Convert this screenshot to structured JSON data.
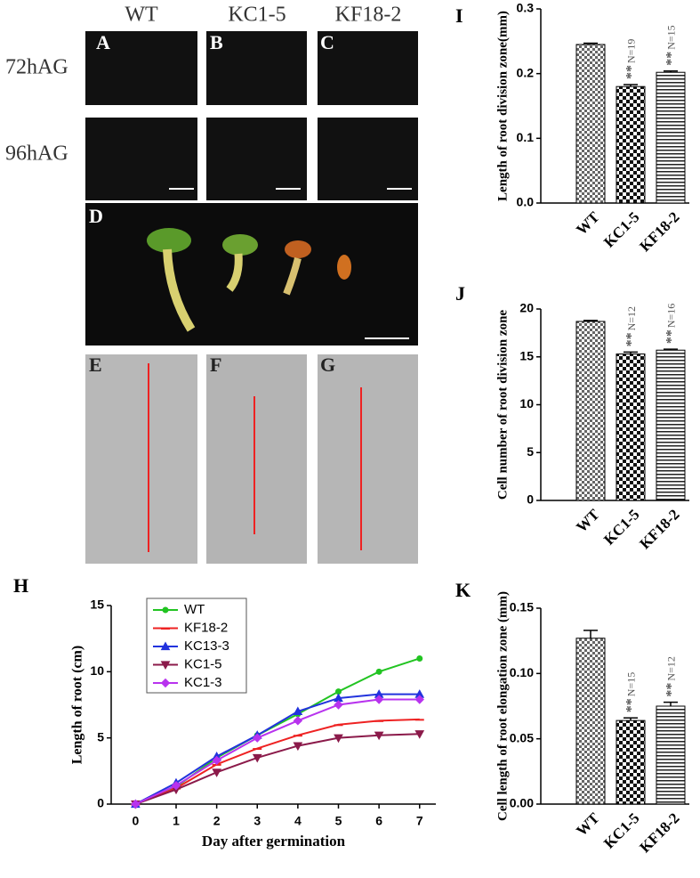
{
  "figure": {
    "columns": [
      "WT",
      "KC1-5",
      "KF18-2"
    ],
    "rows": [
      "72hAG",
      "96hAG"
    ],
    "panels": [
      "A",
      "B",
      "C",
      "D",
      "E",
      "F",
      "G"
    ]
  },
  "chart_data": [
    {
      "type": "line",
      "panel": "H",
      "xlabel": "Day after germination",
      "ylabel": "Length of root (cm)",
      "x": [
        0,
        1,
        2,
        3,
        4,
        5,
        6,
        7
      ],
      "xlim": [
        -0.6,
        7.4
      ],
      "xticks": [
        0,
        1,
        2,
        3,
        4,
        5,
        6,
        7
      ],
      "ylim": [
        0,
        15
      ],
      "yticks": [
        0,
        5,
        10,
        15
      ],
      "legend": "upper-left",
      "series": [
        {
          "name": "WT",
          "color": "#22c422",
          "marker": "circle",
          "values": [
            0,
            1.3,
            3.5,
            5.2,
            6.8,
            8.5,
            10.0,
            11.0
          ]
        },
        {
          "name": "KF18-2",
          "color": "#ee2222",
          "marker": "line",
          "values": [
            0,
            1.2,
            3.0,
            4.2,
            5.2,
            6.0,
            6.3,
            6.4
          ]
        },
        {
          "name": "KC13-3",
          "color": "#2233dd",
          "marker": "triangle-up",
          "values": [
            0,
            1.6,
            3.6,
            5.2,
            7.0,
            8.0,
            8.3,
            8.3
          ]
        },
        {
          "name": "KC1-5",
          "color": "#8b1a4a",
          "marker": "triangle-down",
          "values": [
            0,
            1.1,
            2.4,
            3.5,
            4.4,
            5.0,
            5.2,
            5.3
          ]
        },
        {
          "name": "KC1-3",
          "color": "#b833ee",
          "marker": "diamond",
          "values": [
            0,
            1.4,
            3.3,
            5.0,
            6.3,
            7.5,
            7.9,
            7.9
          ]
        }
      ]
    },
    {
      "type": "bar",
      "panel": "I",
      "ylabel": "Length of root division zone(mm)",
      "categories": [
        "WT",
        "KC1-5",
        "KF18-2"
      ],
      "values": [
        0.245,
        0.18,
        0.202
      ],
      "errors": [
        0.002,
        0.003,
        0.002
      ],
      "ylim": [
        0,
        0.3
      ],
      "yticks": [
        {
          "value": 0,
          "label": "0.0"
        },
        0.1,
        0.2,
        0.3
      ],
      "annotations": [
        {
          "mark": "**",
          "n": "N=19"
        },
        {
          "mark": "**",
          "n": "N=15"
        }
      ]
    },
    {
      "type": "bar",
      "panel": "J",
      "ylabel": "Cell number of root division zone",
      "categories": [
        "WT",
        "KC1-5",
        "KF18-2"
      ],
      "values": [
        18.7,
        15.3,
        15.7
      ],
      "errors": [
        0.1,
        0.2,
        0.1
      ],
      "ylim": [
        0,
        20
      ],
      "yticks": [
        0,
        5,
        10,
        15,
        20
      ],
      "annotations": [
        {
          "mark": "**",
          "n": "N=12"
        },
        {
          "mark": "**",
          "n": "N=16"
        }
      ]
    },
    {
      "type": "bar",
      "panel": "K",
      "ylabel": "Cell length of root elongation zone (mm)",
      "categories": [
        "WT",
        "KC1-5",
        "KF18-2"
      ],
      "values": [
        0.127,
        0.064,
        0.075
      ],
      "errors": [
        0.006,
        0.002,
        0.003
      ],
      "ylim": [
        0,
        0.15
      ],
      "yticks": [
        {
          "value": 0,
          "label": "0.00"
        },
        {
          "value": 0.05,
          "label": "0.05"
        },
        {
          "value": 0.1,
          "label": "0.10"
        },
        {
          "value": 0.15,
          "label": "0.15"
        }
      ],
      "annotations": [
        {
          "mark": "**",
          "n": "N=15"
        },
        {
          "mark": "**",
          "n": "N=12"
        }
      ]
    }
  ]
}
